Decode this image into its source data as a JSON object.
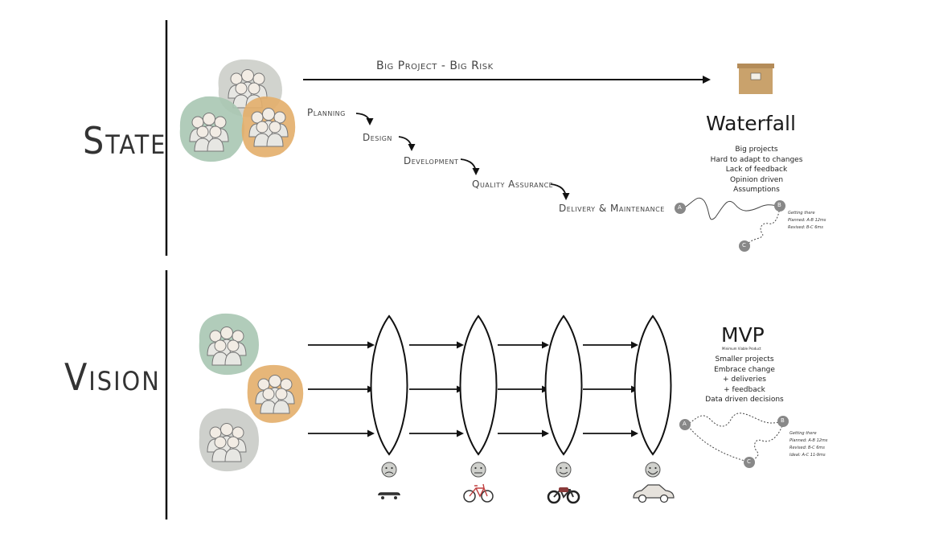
{
  "state": {
    "title": "State",
    "arrow_label": "Big Project - Big Risk",
    "steps": [
      "Planning",
      "Design",
      "Development",
      "Quality Assurance",
      "Delivery & Maintenance"
    ],
    "waterfall": {
      "title": "Waterfall",
      "items": [
        "Big projects",
        "Hard to adapt to changes",
        "Lack of feedback",
        "Opinion driven",
        "Assumptions"
      ],
      "path_points": [
        "A",
        "B",
        "C"
      ],
      "note_lines": [
        "Getting there",
        "Planned: A-B 12ms",
        "Revised: B-C 6ms"
      ]
    }
  },
  "vision": {
    "title": "Vision",
    "mvp": {
      "title": "MVP",
      "subtitle": "Minimum Viable Product",
      "items": [
        "Smaller projects",
        "Embrace change",
        "+ deliveries",
        "+ feedback",
        "Data driven decisions"
      ],
      "path_points": [
        "A",
        "B",
        "C"
      ],
      "note_lines": [
        "Getting there",
        "Planned: A-B 12ms",
        "Revised: B-C 6ms",
        "Ideal: A-C 11-9ms"
      ]
    },
    "iterations": [
      {
        "mood": "sad-face-icon",
        "vehicle": "skateboard-icon"
      },
      {
        "mood": "neutral-face-icon",
        "vehicle": "bicycle-icon"
      },
      {
        "mood": "smile-face-icon",
        "vehicle": "motorcycle-icon"
      },
      {
        "mood": "happy-face-icon",
        "vehicle": "car-icon"
      }
    ]
  },
  "colors": {
    "team_green": "#a9c7b3",
    "team_orange": "#e3ae6a",
    "team_gray": "#c9cbc6",
    "box": "#c9a26c",
    "ink": "#111111"
  }
}
